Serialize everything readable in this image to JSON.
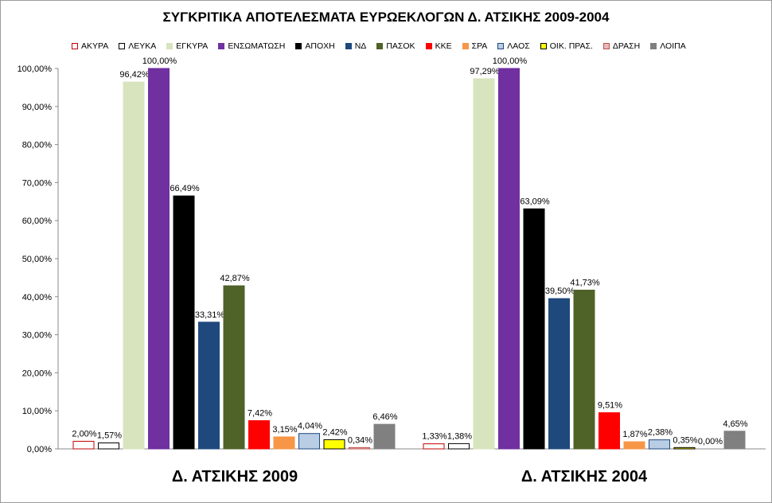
{
  "chart_data": {
    "type": "bar",
    "title": "ΣΥΓΚΡΙΤΙΚΑ ΑΠΟΤΕΛΕΣΜΑΤΑ  ΕΥΡΩΕΚΛΟΓΩΝ Δ. ΑΤΣΙΚΗΣ 2009-2004",
    "ylim": [
      0,
      100
    ],
    "yticks": [
      "0,00%",
      "10,00%",
      "20,00%",
      "30,00%",
      "40,00%",
      "50,00%",
      "60,00%",
      "70,00%",
      "80,00%",
      "90,00%",
      "100,00%"
    ],
    "grid": false,
    "legend_position": "top",
    "categories": [
      "Δ. ΑΤΣΙΚΗΣ 2009",
      "Δ. ΑΤΣΙΚΗΣ 2004"
    ],
    "series": [
      {
        "name": "ΑΚΥΡΑ",
        "color": "#ffffff",
        "border": "#c00000",
        "values": [
          2.0,
          1.33
        ],
        "labels": [
          "2,00%",
          "1,33%"
        ]
      },
      {
        "name": "ΛΕΥΚΑ",
        "color": "#ffffff",
        "border": "#000000",
        "values": [
          1.57,
          1.38
        ],
        "labels": [
          "1,57%",
          "1,38%"
        ]
      },
      {
        "name": "ΕΓΚΥΡΑ",
        "color": "#d7e4bd",
        "border": "#d7e4bd",
        "values": [
          96.42,
          97.29
        ],
        "labels": [
          "96,42%",
          "97,29%"
        ]
      },
      {
        "name": "ΕΝΣΩΜΑΤΩΣΗ",
        "color": "#7030a0",
        "border": "#7030a0",
        "values": [
          100.0,
          100.0
        ],
        "labels": [
          "100,00%",
          "100,00%"
        ]
      },
      {
        "name": "ΑΠΟΧΗ",
        "color": "#000000",
        "border": "#000000",
        "values": [
          66.49,
          63.09
        ],
        "labels": [
          "66,49%",
          "63,09%"
        ]
      },
      {
        "name": "ΝΔ",
        "color": "#1f497d",
        "border": "#1f497d",
        "values": [
          33.31,
          39.5
        ],
        "labels": [
          "33,31%",
          "39,50%"
        ]
      },
      {
        "name": "ΠΑΣΟΚ",
        "color": "#4f6228",
        "border": "#4f6228",
        "values": [
          42.87,
          41.73
        ],
        "labels": [
          "42,87%",
          "41,73%"
        ]
      },
      {
        "name": "ΚΚΕ",
        "color": "#ff0000",
        "border": "#ff0000",
        "values": [
          7.42,
          9.51
        ],
        "labels": [
          "7,42%",
          "9,51%"
        ]
      },
      {
        "name": "ΣΡΑ",
        "color": "#f79646",
        "border": "#f79646",
        "values": [
          3.15,
          1.87
        ],
        "labels": [
          "3,15%",
          "1,87%"
        ]
      },
      {
        "name": "ΛΑΟΣ",
        "color": "#b9cde5",
        "border": "#1f497d",
        "values": [
          4.04,
          2.38
        ],
        "labels": [
          "4,04%",
          "2,38%"
        ]
      },
      {
        "name": "ΟΙΚ. ΠΡΑΣ.",
        "color": "#ffff00",
        "border": "#000000",
        "values": [
          2.42,
          0.35
        ],
        "labels": [
          "2,42%",
          "0,35%"
        ]
      },
      {
        "name": "ΔΡΑΣΗ",
        "color": "#e6b9b8",
        "border": "#c0504d",
        "values": [
          0.34,
          0.0
        ],
        "labels": [
          "0,34%",
          "0,00%"
        ]
      },
      {
        "name": "ΛΟΙΠΑ",
        "color": "#808080",
        "border": "#808080",
        "values": [
          6.46,
          4.65
        ],
        "labels": [
          "6,46%",
          "4,65%"
        ]
      }
    ]
  }
}
